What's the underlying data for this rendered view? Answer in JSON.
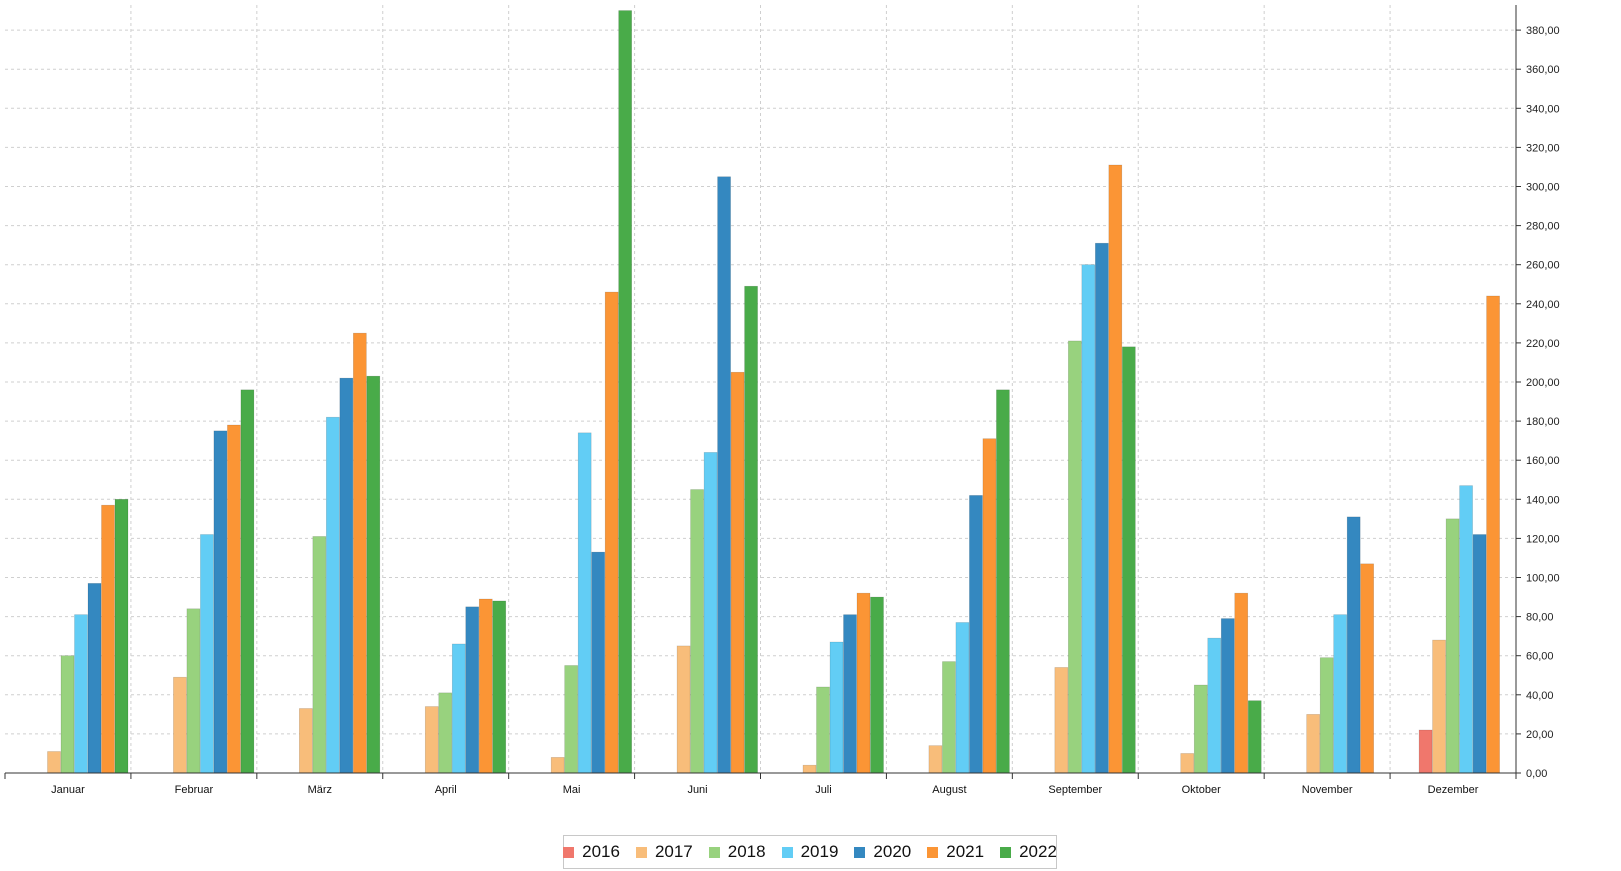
{
  "chart_data": {
    "type": "bar",
    "categories": [
      "Januar",
      "Februar",
      "März",
      "April",
      "Mai",
      "Juni",
      "Juli",
      "August",
      "September",
      "Oktober",
      "November",
      "Dezember"
    ],
    "series": [
      {
        "name": "2016",
        "color": "#f0776c",
        "values": [
          0,
          0,
          0,
          0,
          0,
          0,
          0,
          0,
          0,
          0,
          0,
          22
        ]
      },
      {
        "name": "2017",
        "color": "#f8bd7a",
        "values": [
          11,
          49,
          33,
          34,
          8,
          65,
          4,
          14,
          54,
          10,
          30,
          68
        ]
      },
      {
        "name": "2018",
        "color": "#98d27e",
        "values": [
          60,
          84,
          121,
          41,
          55,
          145,
          44,
          57,
          221,
          45,
          59,
          130
        ]
      },
      {
        "name": "2019",
        "color": "#62cdf5",
        "values": [
          81,
          122,
          182,
          66,
          174,
          164,
          67,
          77,
          260,
          69,
          81,
          147
        ]
      },
      {
        "name": "2020",
        "color": "#3488c0",
        "values": [
          97,
          175,
          202,
          85,
          113,
          305,
          81,
          142,
          271,
          79,
          131,
          122
        ]
      },
      {
        "name": "2021",
        "color": "#fb9535",
        "values": [
          137,
          178,
          225,
          89,
          246,
          205,
          92,
          171,
          311,
          92,
          107,
          244
        ]
      },
      {
        "name": "2022",
        "color": "#49ab49",
        "values": [
          140,
          196,
          203,
          88,
          390,
          249,
          90,
          196,
          218,
          37,
          0,
          0
        ]
      }
    ],
    "y_ticks": [
      "0,00",
      "20,00",
      "40,00",
      "60,00",
      "80,00",
      "100,00",
      "120,00",
      "140,00",
      "160,00",
      "180,00",
      "200,00",
      "220,00",
      "240,00",
      "260,00",
      "280,00",
      "300,00",
      "320,00",
      "340,00",
      "360,00",
      "380,00"
    ],
    "ylim": [
      0,
      390
    ],
    "y_axis_position": "right",
    "grid": true,
    "legend_position": "bottom-center"
  }
}
